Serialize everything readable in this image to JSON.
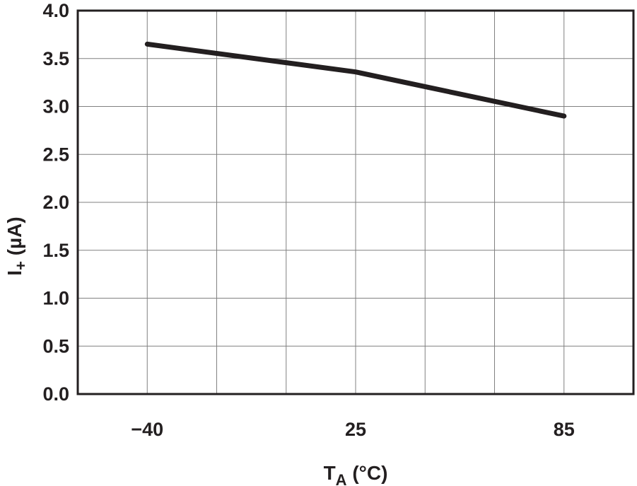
{
  "chart_data": {
    "type": "line",
    "x_tick_labels": [
      "−40",
      "25",
      "85"
    ],
    "y_tick_labels": [
      "0.0",
      "0.5",
      "1.0",
      "1.5",
      "2.0",
      "2.5",
      "3.0",
      "3.5",
      "4.0"
    ],
    "xlabel": {
      "main": "T",
      "sub": "A",
      "unit": " (°C)"
    },
    "ylabel": {
      "main": "I",
      "sub": "+",
      "unit": " (µA)"
    },
    "xlim": [
      -40,
      85
    ],
    "ylim": [
      0,
      4
    ],
    "grid": true,
    "series": [
      {
        "x": [
          -40,
          25,
          85
        ],
        "y": [
          3.65,
          3.36,
          2.9
        ]
      }
    ],
    "colors": {
      "line": "#231f20",
      "grid": "#808080",
      "frame": "#231f20"
    }
  }
}
